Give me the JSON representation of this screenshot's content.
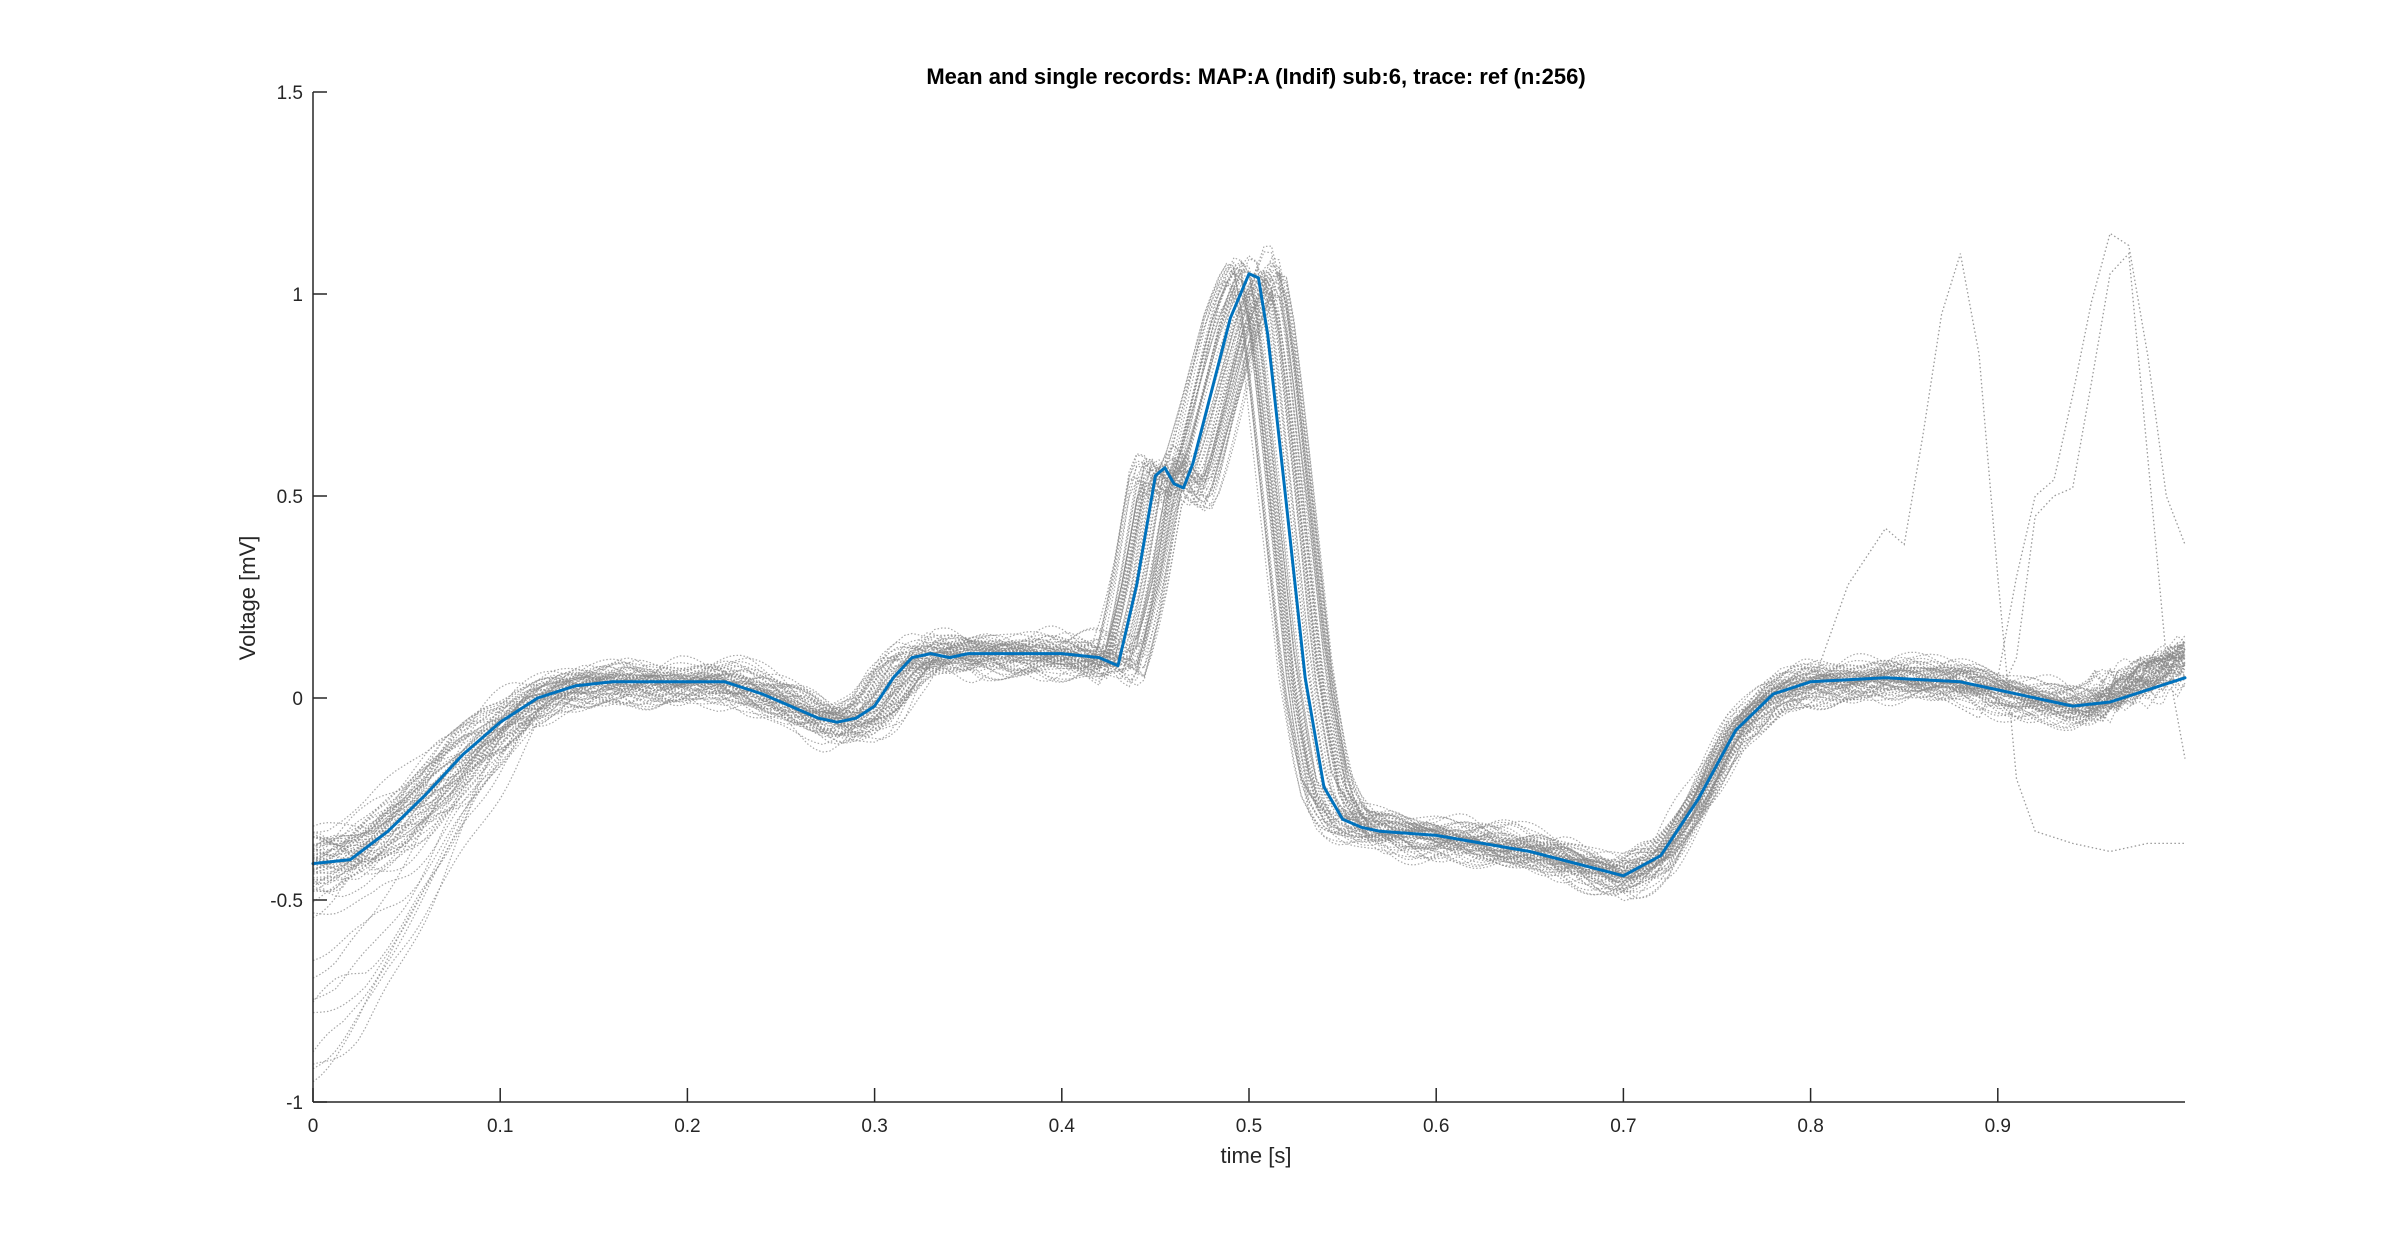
{
  "chart_data": {
    "type": "line",
    "title": "Mean and single records: MAP:A (Indif) sub:6, trace: ref (n:256)",
    "xlabel": "time [s]",
    "ylabel": "Voltage [mV]",
    "xlim": [
      0,
      1.0
    ],
    "ylim": [
      -1,
      1.5
    ],
    "xticks": [
      0,
      0.1,
      0.2,
      0.3,
      0.4,
      0.5,
      0.6,
      0.7,
      0.8,
      0.9
    ],
    "xtick_labels": [
      "0",
      "0.1",
      "0.2",
      "0.3",
      "0.4",
      "0.5",
      "0.6",
      "0.7",
      "0.8",
      "0.9"
    ],
    "yticks": [
      -1,
      -0.5,
      0,
      0.5,
      1,
      1.5
    ],
    "ytick_labels": [
      "-1",
      "-0.5",
      "0",
      "0.5",
      "1",
      "1.5"
    ],
    "grid": false,
    "box": "left-bottom axes only",
    "series": [
      {
        "role": "mean",
        "color": "#0072BD",
        "style": "solid",
        "x": [
          0,
          0.02,
          0.04,
          0.06,
          0.08,
          0.1,
          0.12,
          0.14,
          0.16,
          0.18,
          0.2,
          0.22,
          0.24,
          0.26,
          0.27,
          0.28,
          0.29,
          0.3,
          0.31,
          0.32,
          0.33,
          0.34,
          0.35,
          0.37,
          0.4,
          0.42,
          0.43,
          0.44,
          0.45,
          0.455,
          0.46,
          0.465,
          0.47,
          0.48,
          0.49,
          0.5,
          0.505,
          0.51,
          0.52,
          0.53,
          0.54,
          0.55,
          0.56,
          0.57,
          0.6,
          0.65,
          0.7,
          0.72,
          0.74,
          0.76,
          0.78,
          0.8,
          0.84,
          0.88,
          0.9,
          0.92,
          0.94,
          0.96,
          0.98,
          1.0
        ],
        "y": [
          -0.41,
          -0.4,
          -0.33,
          -0.24,
          -0.14,
          -0.06,
          0.0,
          0.03,
          0.04,
          0.04,
          0.04,
          0.04,
          0.01,
          -0.03,
          -0.05,
          -0.06,
          -0.05,
          -0.02,
          0.05,
          0.1,
          0.11,
          0.1,
          0.11,
          0.11,
          0.11,
          0.1,
          0.08,
          0.28,
          0.55,
          0.57,
          0.53,
          0.52,
          0.58,
          0.76,
          0.94,
          1.05,
          1.04,
          0.9,
          0.48,
          0.05,
          -0.22,
          -0.3,
          -0.32,
          -0.33,
          -0.34,
          -0.38,
          -0.44,
          -0.39,
          -0.25,
          -0.08,
          0.01,
          0.04,
          0.05,
          0.04,
          0.02,
          0.0,
          -0.02,
          -0.01,
          0.02,
          0.05
        ]
      },
      {
        "role": "single-record outlier",
        "color": "#9a9a9a",
        "style": "dotted",
        "x": [
          0.8,
          0.82,
          0.84,
          0.85,
          0.86,
          0.87,
          0.88,
          0.89,
          0.9,
          0.91,
          0.92,
          0.94,
          0.96,
          0.98,
          1.0
        ],
        "y": [
          0.02,
          0.28,
          0.42,
          0.38,
          0.65,
          0.95,
          1.1,
          0.85,
          0.3,
          -0.2,
          -0.33,
          -0.36,
          -0.38,
          -0.36,
          -0.36
        ]
      },
      {
        "role": "single-record outlier",
        "color": "#9a9a9a",
        "style": "dotted",
        "x": [
          0.85,
          0.87,
          0.89,
          0.9,
          0.91,
          0.92,
          0.93,
          0.94,
          0.95,
          0.96,
          0.97,
          0.98,
          0.99,
          1.0
        ],
        "y": [
          0.04,
          0.0,
          -0.05,
          0.05,
          0.3,
          0.5,
          0.54,
          0.75,
          0.98,
          1.15,
          1.12,
          0.85,
          0.5,
          0.38
        ]
      },
      {
        "role": "single-record outlier",
        "color": "#9a9a9a",
        "style": "dotted",
        "x": [
          0.86,
          0.88,
          0.9,
          0.91,
          0.92,
          0.93,
          0.94,
          0.95,
          0.96,
          0.97,
          0.98,
          0.99,
          1.0
        ],
        "y": [
          0.04,
          0.02,
          0.0,
          0.1,
          0.45,
          0.5,
          0.52,
          0.78,
          1.05,
          1.1,
          0.6,
          0.1,
          -0.15
        ]
      }
    ]
  }
}
